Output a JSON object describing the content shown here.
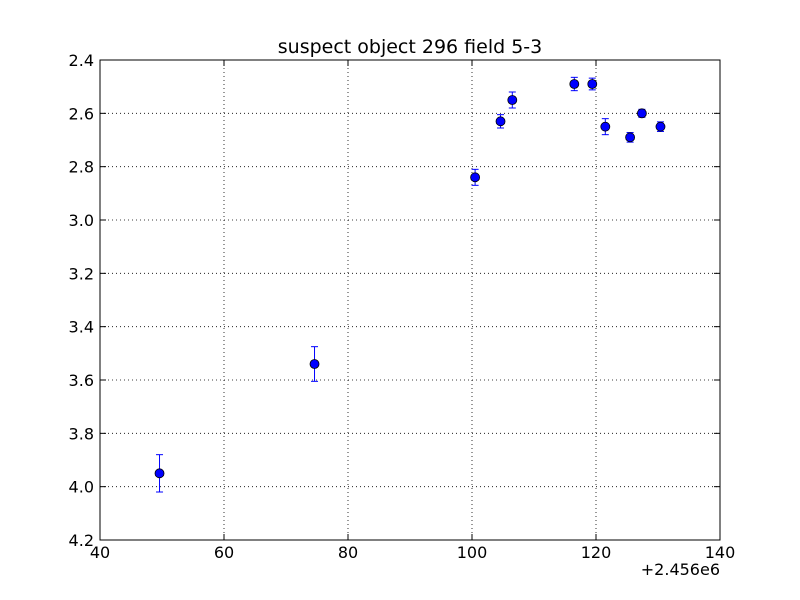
{
  "chart_data": {
    "type": "scatter",
    "title": "suspect object 296 field 5-3",
    "xlabel": "",
    "ylabel": "",
    "xlim": [
      40,
      140
    ],
    "ylim": [
      2.4,
      4.2
    ],
    "y_inverted": true,
    "x_offset_label": "+2.456e6",
    "x_ticks": [
      "40",
      "60",
      "80",
      "100",
      "120",
      "140"
    ],
    "y_ticks": [
      "2.4",
      "2.6",
      "2.8",
      "3.0",
      "3.2",
      "3.4",
      "3.6",
      "3.8",
      "4.0",
      "4.2"
    ],
    "grid": true,
    "marker_color": "#0000ff",
    "errorbar_color": "#0000ff",
    "points": [
      {
        "x": 49.6,
        "y": 3.95,
        "err": 0.07
      },
      {
        "x": 74.6,
        "y": 3.54,
        "err": 0.065
      },
      {
        "x": 100.5,
        "y": 2.84,
        "err": 0.03
      },
      {
        "x": 104.6,
        "y": 2.63,
        "err": 0.025
      },
      {
        "x": 106.5,
        "y": 2.55,
        "err": 0.03
      },
      {
        "x": 116.5,
        "y": 2.49,
        "err": 0.025
      },
      {
        "x": 119.4,
        "y": 2.49,
        "err": 0.022
      },
      {
        "x": 121.5,
        "y": 2.65,
        "err": 0.03
      },
      {
        "x": 125.5,
        "y": 2.69,
        "err": 0.018
      },
      {
        "x": 127.4,
        "y": 2.6,
        "err": 0.015
      },
      {
        "x": 130.4,
        "y": 2.65,
        "err": 0.018
      }
    ]
  }
}
